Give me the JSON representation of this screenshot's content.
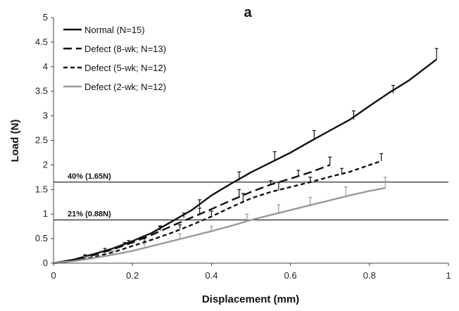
{
  "chart_data": {
    "type": "line",
    "panel_label": "a",
    "xlabel": "Displacement (mm)",
    "ylabel": "Load (N)",
    "xlim": [
      0,
      1
    ],
    "ylim": [
      0,
      5
    ],
    "xticks": [
      0,
      0.2,
      0.4,
      0.6,
      0.8,
      1
    ],
    "yticks": [
      0,
      0.5,
      1,
      1.5,
      2,
      2.5,
      3,
      3.5,
      4,
      4.5,
      5
    ],
    "grid": false,
    "legend_position": "top-left",
    "reference_lines": [
      {
        "label": "40% (1.65N)",
        "y": 1.65
      },
      {
        "label": "21% (0.88N)",
        "y": 0.88
      }
    ],
    "series": [
      {
        "name": "Normal (N=15)",
        "color": "#111111",
        "dash": "solid",
        "x": [
          0,
          0.05,
          0.1,
          0.15,
          0.2,
          0.25,
          0.3,
          0.35,
          0.4,
          0.45,
          0.5,
          0.55,
          0.6,
          0.65,
          0.7,
          0.75,
          0.8,
          0.85,
          0.9,
          0.97
        ],
        "y": [
          0,
          0.07,
          0.18,
          0.3,
          0.45,
          0.62,
          0.85,
          1.08,
          1.38,
          1.62,
          1.85,
          2.05,
          2.25,
          2.48,
          2.7,
          2.92,
          3.2,
          3.47,
          3.72,
          4.15
        ],
        "errorbars": [
          {
            "x": 0.08,
            "y": 0.12,
            "err": 0.05
          },
          {
            "x": 0.13,
            "y": 0.25,
            "err": 0.05
          },
          {
            "x": 0.19,
            "y": 0.4,
            "err": 0.06
          },
          {
            "x": 0.27,
            "y": 0.68,
            "err": 0.08
          },
          {
            "x": 0.33,
            "y": 0.92,
            "err": 0.1
          },
          {
            "x": 0.37,
            "y": 1.14,
            "err": 0.15
          },
          {
            "x": 0.47,
            "y": 1.68,
            "err": 0.18
          },
          {
            "x": 0.56,
            "y": 2.09,
            "err": 0.18
          },
          {
            "x": 0.66,
            "y": 2.5,
            "err": 0.2
          },
          {
            "x": 0.76,
            "y": 2.92,
            "err": 0.18
          },
          {
            "x": 0.86,
            "y": 3.46,
            "err": 0.16
          },
          {
            "x": 0.97,
            "y": 4.15,
            "err": 0.22
          }
        ]
      },
      {
        "name": "Defect (8-wk; N=13)",
        "color": "#111111",
        "dash": "long-dash",
        "x": [
          0,
          0.05,
          0.1,
          0.15,
          0.2,
          0.25,
          0.3,
          0.35,
          0.4,
          0.45,
          0.5,
          0.55,
          0.6,
          0.65,
          0.7
        ],
        "y": [
          0,
          0.06,
          0.16,
          0.28,
          0.42,
          0.58,
          0.76,
          0.93,
          1.1,
          1.28,
          1.45,
          1.6,
          1.72,
          1.85,
          2.0
        ],
        "errorbars": [
          {
            "x": 0.08,
            "y": 0.12,
            "err": 0.04
          },
          {
            "x": 0.18,
            "y": 0.36,
            "err": 0.06
          },
          {
            "x": 0.27,
            "y": 0.66,
            "err": 0.08
          },
          {
            "x": 0.37,
            "y": 1.0,
            "err": 0.12
          },
          {
            "x": 0.47,
            "y": 1.35,
            "err": 0.15
          },
          {
            "x": 0.55,
            "y": 1.6,
            "err": 0.08
          },
          {
            "x": 0.62,
            "y": 1.77,
            "err": 0.12
          },
          {
            "x": 0.7,
            "y": 2.0,
            "err": 0.16
          }
        ]
      },
      {
        "name": "Defect (5-wk; N=12)",
        "color": "#111111",
        "dash": "short-dash",
        "x": [
          0,
          0.05,
          0.1,
          0.15,
          0.2,
          0.25,
          0.3,
          0.35,
          0.4,
          0.45,
          0.5,
          0.55,
          0.6,
          0.65,
          0.7,
          0.75,
          0.83
        ],
        "y": [
          0,
          0.05,
          0.12,
          0.22,
          0.35,
          0.48,
          0.62,
          0.78,
          0.95,
          1.14,
          1.32,
          1.45,
          1.55,
          1.65,
          1.76,
          1.86,
          2.08
        ],
        "errorbars": [
          {
            "x": 0.08,
            "y": 0.1,
            "err": 0.04
          },
          {
            "x": 0.15,
            "y": 0.2,
            "err": 0.05
          },
          {
            "x": 0.23,
            "y": 0.44,
            "err": 0.06
          },
          {
            "x": 0.32,
            "y": 0.7,
            "err": 0.08
          },
          {
            "x": 0.4,
            "y": 0.96,
            "err": 0.1
          },
          {
            "x": 0.48,
            "y": 1.27,
            "err": 0.15
          },
          {
            "x": 0.57,
            "y": 1.48,
            "err": 0.16
          },
          {
            "x": 0.65,
            "y": 1.63,
            "err": 0.12
          },
          {
            "x": 0.73,
            "y": 1.8,
            "err": 0.13
          },
          {
            "x": 0.83,
            "y": 2.08,
            "err": 0.15
          }
        ]
      },
      {
        "name": "Defect (2-wk; N=12)",
        "color": "#999999",
        "dash": "solid",
        "x": [
          0,
          0.05,
          0.1,
          0.15,
          0.2,
          0.25,
          0.3,
          0.35,
          0.4,
          0.45,
          0.5,
          0.55,
          0.6,
          0.65,
          0.7,
          0.75,
          0.8,
          0.84
        ],
        "y": [
          0,
          0.04,
          0.1,
          0.17,
          0.25,
          0.35,
          0.45,
          0.55,
          0.65,
          0.76,
          0.88,
          0.98,
          1.08,
          1.18,
          1.28,
          1.38,
          1.47,
          1.53
        ],
        "errorbars": [
          {
            "x": 0.08,
            "y": 0.08,
            "err": 0.05
          },
          {
            "x": 0.15,
            "y": 0.17,
            "err": 0.08
          },
          {
            "x": 0.23,
            "y": 0.3,
            "err": 0.1
          },
          {
            "x": 0.32,
            "y": 0.48,
            "err": 0.12
          },
          {
            "x": 0.4,
            "y": 0.63,
            "err": 0.12
          },
          {
            "x": 0.49,
            "y": 0.86,
            "err": 0.14
          },
          {
            "x": 0.57,
            "y": 1.03,
            "err": 0.16
          },
          {
            "x": 0.65,
            "y": 1.16,
            "err": 0.18
          },
          {
            "x": 0.74,
            "y": 1.35,
            "err": 0.2
          },
          {
            "x": 0.84,
            "y": 1.53,
            "err": 0.22
          }
        ]
      }
    ]
  }
}
